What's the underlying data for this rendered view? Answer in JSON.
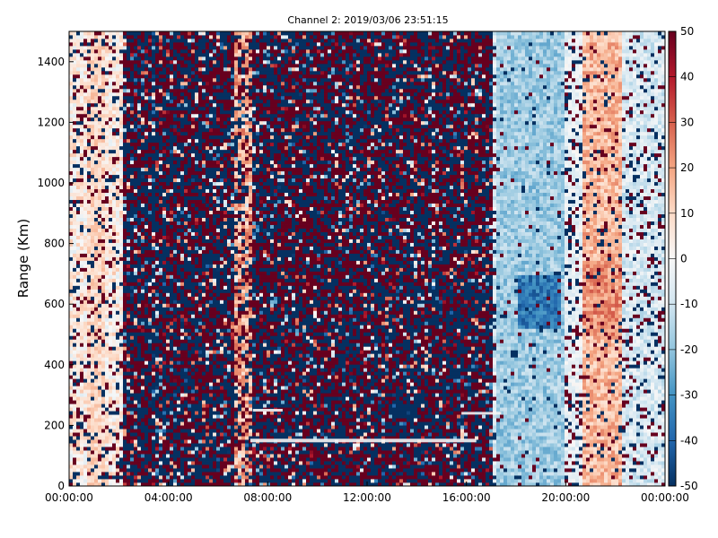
{
  "chart_data": {
    "type": "heatmap",
    "title": "Channel 2: 2019/03/06 23:51:15",
    "xlabel": "",
    "ylabel": "Range (Km)",
    "x_ticks": [
      "00:00:00",
      "04:00:00",
      "08:00:00",
      "12:00:00",
      "16:00:00",
      "20:00:00",
      "00:00:00"
    ],
    "x_range_hours": [
      0,
      24
    ],
    "ylim": [
      0,
      1500
    ],
    "y_ticks": [
      0,
      200,
      400,
      600,
      800,
      1000,
      1200,
      1400
    ],
    "colorbar": {
      "range": [
        -50,
        50
      ],
      "ticks": [
        50,
        40,
        30,
        20,
        10,
        0,
        -10,
        -20,
        -30,
        -40,
        -50
      ],
      "colormap": "RdBu_r"
    },
    "grid": false,
    "description_regions": {
      "noisy_band_hours": [
        2.2,
        17.0
      ],
      "cool_band_hours": [
        17.2,
        20.0
      ],
      "warm_band_hours": [
        20.7,
        22.3
      ],
      "warm_streak_hours": [
        6.6,
        7.4
      ]
    }
  }
}
